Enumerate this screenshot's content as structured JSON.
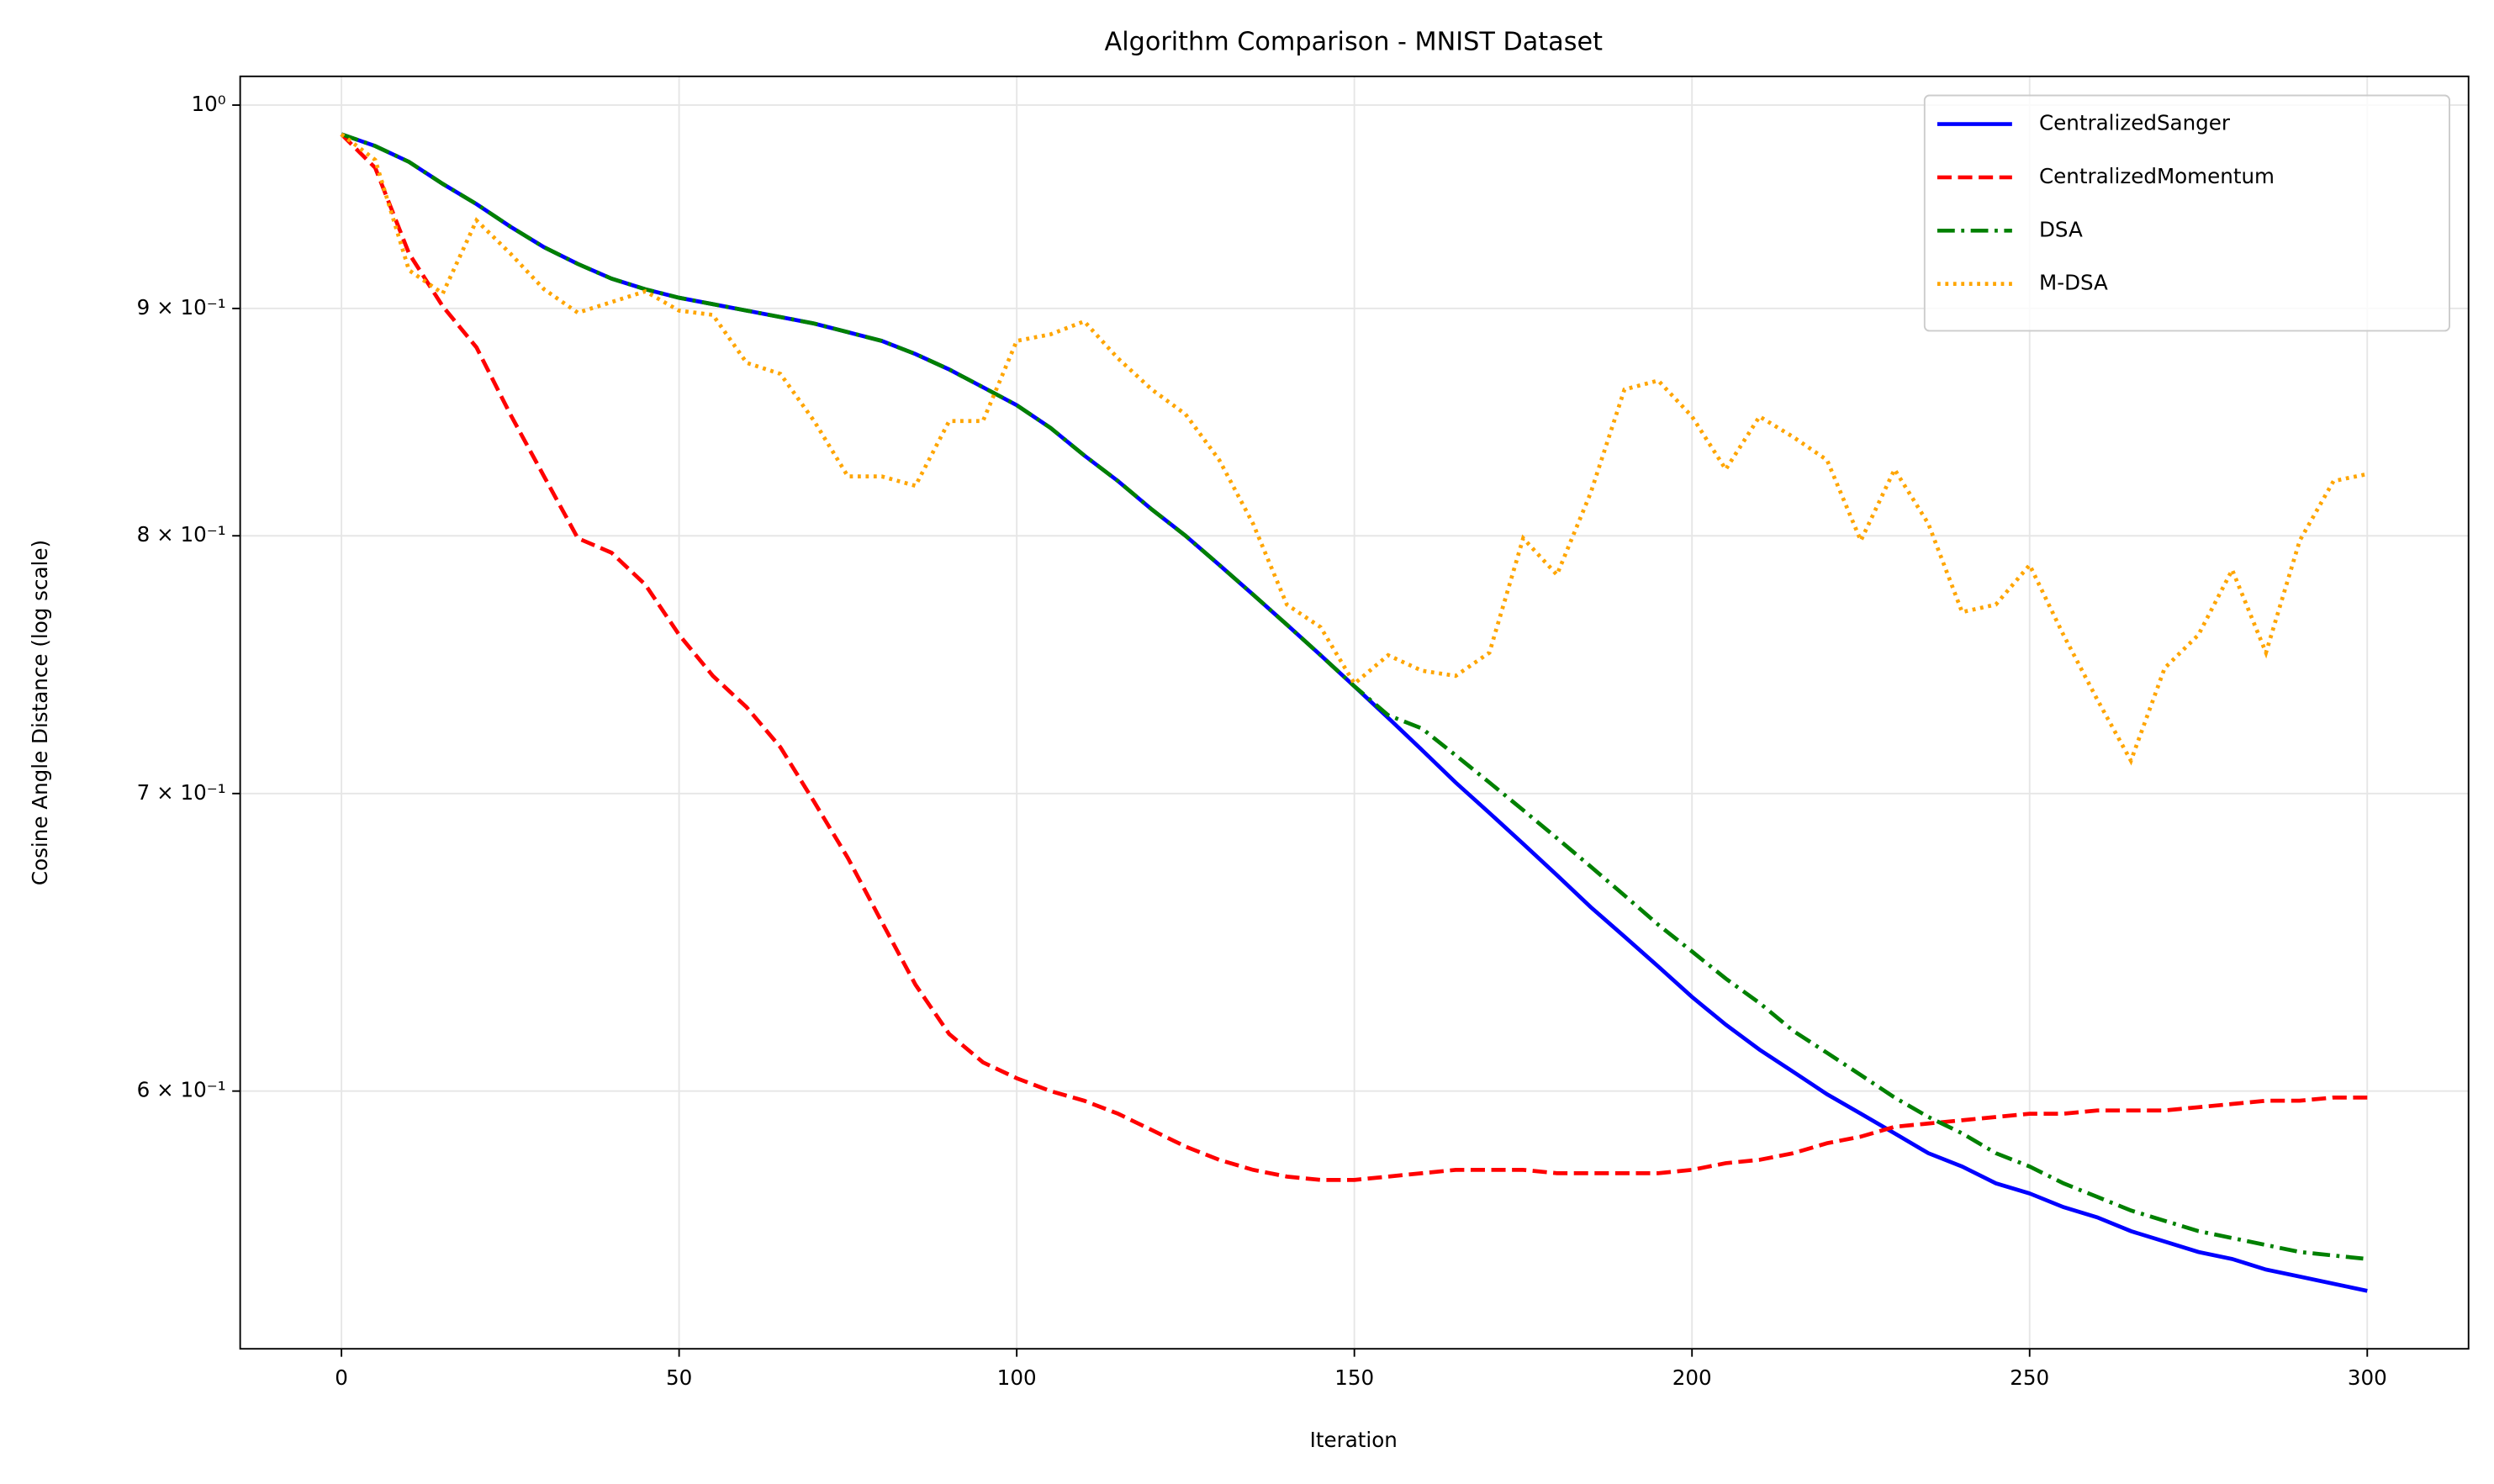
{
  "chart_data": {
    "type": "line",
    "title": "Algorithm Comparison - MNIST Dataset",
    "x_label": "Iteration",
    "y_label": "Cosine Angle Distance (log scale)",
    "y_scale": "log",
    "grid": true,
    "legend": "upper right",
    "xlim": [
      -15,
      315
    ],
    "xticks": [
      0,
      50,
      100,
      150,
      200,
      250,
      300
    ],
    "ylim": [
      0.525,
      1.015
    ],
    "yticks": [
      {
        "value": 0.6,
        "label": "6 × 10⁻¹"
      },
      {
        "value": 0.7,
        "label": "7 × 10⁻¹"
      },
      {
        "value": 0.8,
        "label": "8 × 10⁻¹"
      },
      {
        "value": 0.9,
        "label": "9 × 10⁻¹"
      },
      {
        "value": 1,
        "label": "10⁰"
      }
    ],
    "x": [
      0,
      5,
      10,
      15,
      20,
      25,
      30,
      35,
      40,
      45,
      50,
      55,
      60,
      65,
      70,
      75,
      80,
      85,
      90,
      95,
      100,
      105,
      110,
      115,
      120,
      125,
      130,
      135,
      140,
      145,
      150,
      155,
      160,
      165,
      170,
      175,
      180,
      185,
      190,
      195,
      200,
      205,
      210,
      215,
      220,
      225,
      230,
      235,
      240,
      245,
      250,
      255,
      260,
      265,
      270,
      275,
      280,
      285,
      290,
      295,
      300
    ],
    "series": [
      {
        "name": "CentralizedSanger",
        "color": "#0000ff",
        "dash": "solid",
        "values": [
          0.985,
          0.979,
          0.971,
          0.96,
          0.95,
          0.939,
          0.929,
          0.921,
          0.914,
          0.909,
          0.905,
          0.902,
          0.899,
          0.896,
          0.893,
          0.889,
          0.885,
          0.879,
          0.872,
          0.864,
          0.856,
          0.846,
          0.834,
          0.823,
          0.811,
          0.8,
          0.788,
          0.776,
          0.764,
          0.752,
          0.74,
          0.728,
          0.716,
          0.704,
          0.693,
          0.682,
          0.671,
          0.66,
          0.65,
          0.64,
          0.63,
          0.621,
          0.613,
          0.606,
          0.599,
          0.593,
          0.587,
          0.581,
          0.577,
          0.572,
          0.569,
          0.565,
          0.562,
          0.558,
          0.555,
          0.552,
          0.55,
          0.547,
          0.545,
          0.543,
          0.541
        ]
      },
      {
        "name": "CentralizedMomentum",
        "color": "#ff0000",
        "dash": "dashed",
        "values": [
          0.985,
          0.968,
          0.926,
          0.901,
          0.882,
          0.852,
          0.825,
          0.799,
          0.793,
          0.78,
          0.76,
          0.744,
          0.732,
          0.717,
          0.697,
          0.677,
          0.655,
          0.634,
          0.618,
          0.609,
          0.604,
          0.6,
          0.597,
          0.593,
          0.588,
          0.583,
          0.579,
          0.576,
          0.574,
          0.573,
          0.573,
          0.574,
          0.575,
          0.576,
          0.576,
          0.576,
          0.575,
          0.575,
          0.575,
          0.575,
          0.576,
          0.578,
          0.579,
          0.581,
          0.584,
          0.586,
          0.589,
          0.59,
          0.591,
          0.592,
          0.593,
          0.593,
          0.594,
          0.594,
          0.594,
          0.595,
          0.596,
          0.597,
          0.597,
          0.598,
          0.598
        ]
      },
      {
        "name": "DSA",
        "color": "#008000",
        "dash": "dashdot",
        "values": [
          0.985,
          0.979,
          0.971,
          0.96,
          0.95,
          0.939,
          0.929,
          0.921,
          0.914,
          0.909,
          0.905,
          0.902,
          0.899,
          0.896,
          0.893,
          0.889,
          0.885,
          0.879,
          0.872,
          0.864,
          0.856,
          0.846,
          0.834,
          0.823,
          0.811,
          0.8,
          0.788,
          0.776,
          0.764,
          0.752,
          0.74,
          0.729,
          0.724,
          0.714,
          0.704,
          0.694,
          0.684,
          0.674,
          0.664,
          0.654,
          0.645,
          0.636,
          0.628,
          0.619,
          0.612,
          0.605,
          0.598,
          0.592,
          0.587,
          0.581,
          0.577,
          0.572,
          0.568,
          0.564,
          0.561,
          0.558,
          0.556,
          0.554,
          0.552,
          0.551,
          0.55
        ]
      },
      {
        "name": "M-DSA",
        "color": "#ffa500",
        "dash": "dotted",
        "values": [
          0.985,
          0.972,
          0.918,
          0.907,
          0.942,
          0.926,
          0.909,
          0.898,
          0.903,
          0.908,
          0.899,
          0.897,
          0.875,
          0.87,
          0.849,
          0.825,
          0.825,
          0.821,
          0.849,
          0.849,
          0.885,
          0.888,
          0.894,
          0.877,
          0.863,
          0.852,
          0.832,
          0.805,
          0.772,
          0.763,
          0.741,
          0.752,
          0.746,
          0.744,
          0.753,
          0.799,
          0.784,
          0.818,
          0.863,
          0.867,
          0.851,
          0.828,
          0.851,
          0.842,
          0.832,
          0.798,
          0.828,
          0.805,
          0.769,
          0.772,
          0.788,
          0.76,
          0.735,
          0.712,
          0.747,
          0.76,
          0.786,
          0.753,
          0.798,
          0.823,
          0.826
        ]
      }
    ]
  }
}
